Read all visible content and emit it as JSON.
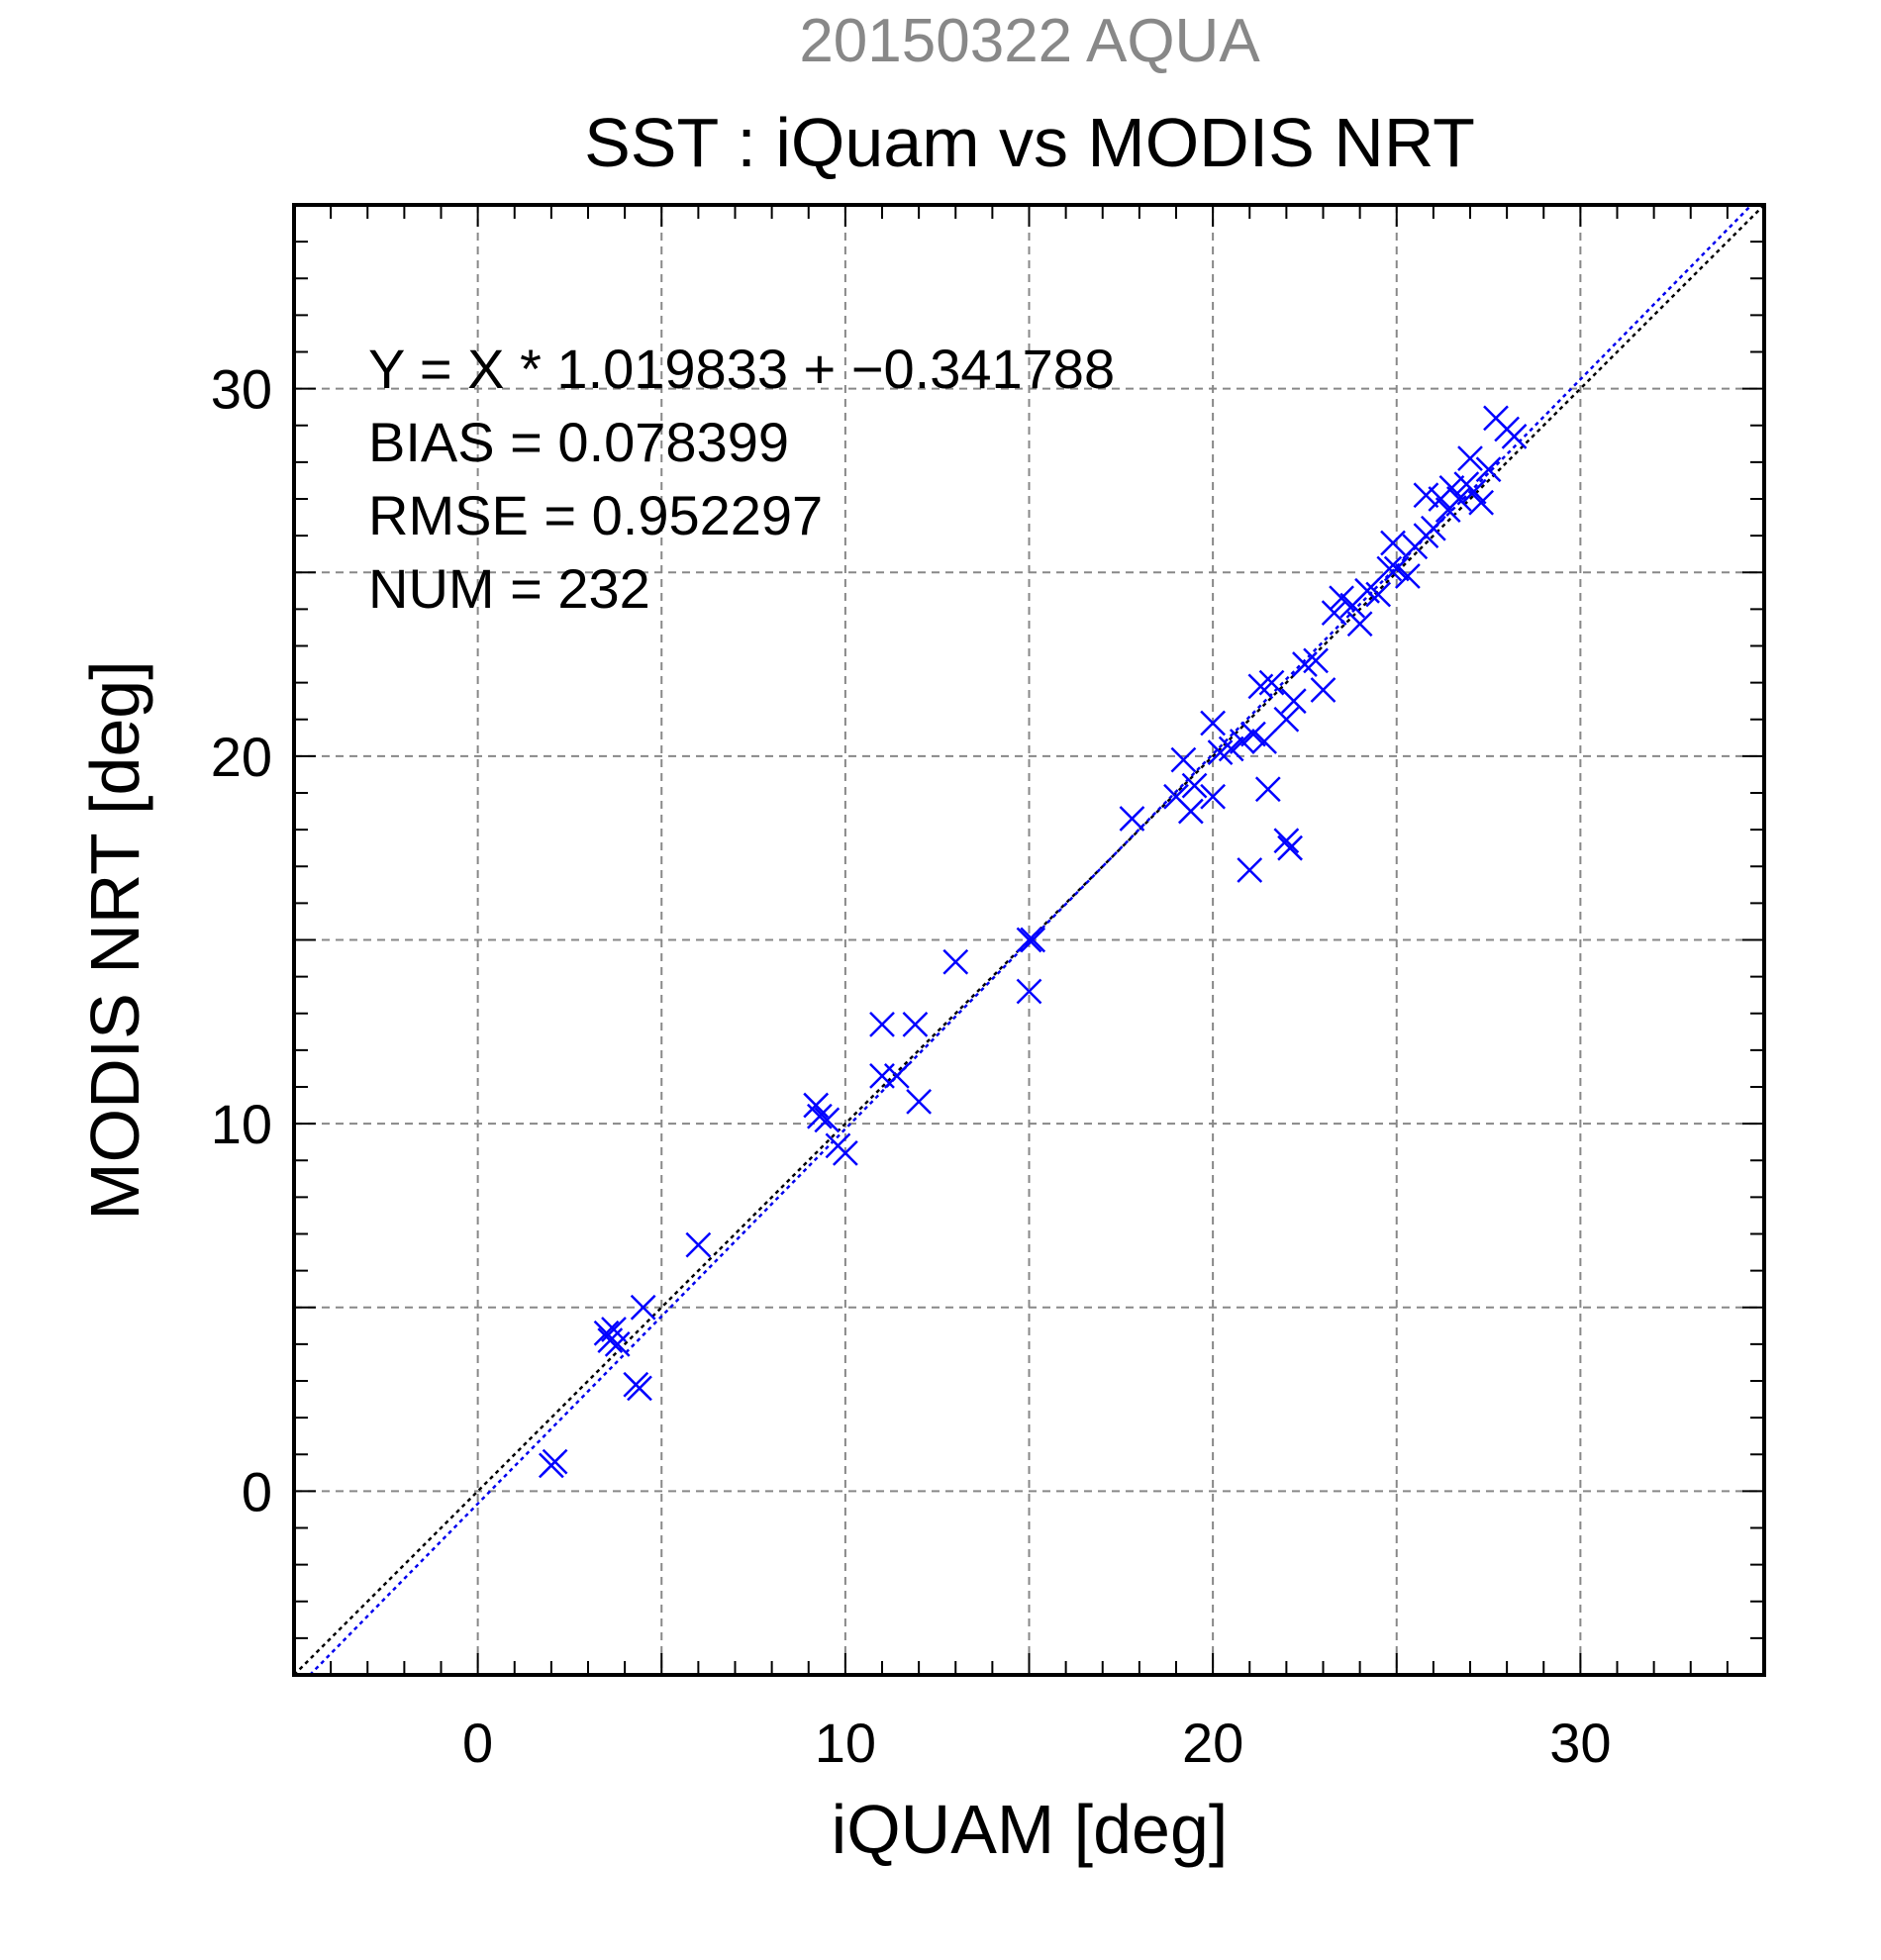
{
  "chart_data": {
    "type": "scatter",
    "title": "20150322 AQUA",
    "subtitle": "SST : iQuam vs MODIS NRT",
    "xlabel": "iQUAM [deg]",
    "ylabel": "MODIS NRT [deg]",
    "xlim": [
      -5,
      35
    ],
    "ylim": [
      -5,
      35
    ],
    "xticks": [
      0,
      10,
      20,
      30
    ],
    "yticks": [
      0,
      10,
      20,
      30
    ],
    "xtick_labels": [
      "0",
      "10",
      "20",
      "30"
    ],
    "ytick_labels": [
      "0",
      "10",
      "20",
      "30"
    ],
    "grid": true,
    "stats": [
      "Y = X * 1.019833 + −0.341788",
      "BIAS = 0.078399",
      "RMSE = 0.952297",
      "NUM = 232"
    ],
    "fit_line": {
      "slope": 1.019833,
      "intercept": -0.341788
    },
    "series": [
      {
        "marker": "x",
        "points": [
          [
            2.0,
            0.7
          ],
          [
            2.1,
            0.8
          ],
          [
            3.5,
            4.3
          ],
          [
            3.6,
            4.1
          ],
          [
            3.8,
            4.0
          ],
          [
            3.7,
            4.4
          ],
          [
            4.3,
            2.9
          ],
          [
            4.4,
            2.8
          ],
          [
            4.5,
            5.0
          ],
          [
            6.0,
            6.7
          ],
          [
            9.2,
            10.5
          ],
          [
            9.3,
            10.2
          ],
          [
            9.5,
            10.1
          ],
          [
            9.8,
            9.4
          ],
          [
            10.0,
            9.2
          ],
          [
            11.0,
            12.7
          ],
          [
            11.0,
            11.3
          ],
          [
            11.4,
            11.3
          ],
          [
            11.9,
            12.7
          ],
          [
            12.0,
            10.6
          ],
          [
            13.0,
            14.4
          ],
          [
            15.0,
            15.0
          ],
          [
            15.1,
            15.0
          ],
          [
            15.0,
            13.6
          ],
          [
            17.8,
            18.3
          ],
          [
            19.0,
            18.9
          ],
          [
            19.2,
            19.9
          ],
          [
            19.4,
            18.5
          ],
          [
            19.5,
            19.2
          ],
          [
            20.0,
            18.9
          ],
          [
            20.0,
            20.9
          ],
          [
            20.2,
            20.1
          ],
          [
            20.5,
            20.2
          ],
          [
            20.8,
            20.4
          ],
          [
            21.0,
            16.9
          ],
          [
            21.1,
            20.6
          ],
          [
            21.3,
            21.9
          ],
          [
            21.4,
            20.4
          ],
          [
            21.5,
            19.1
          ],
          [
            21.6,
            22.0
          ],
          [
            22.0,
            17.7
          ],
          [
            22.1,
            17.5
          ],
          [
            22.0,
            21.0
          ],
          [
            22.2,
            21.5
          ],
          [
            22.5,
            22.5
          ],
          [
            22.8,
            22.6
          ],
          [
            23.0,
            21.8
          ],
          [
            23.3,
            23.9
          ],
          [
            23.5,
            24.3
          ],
          [
            23.8,
            24.1
          ],
          [
            24.0,
            23.6
          ],
          [
            24.2,
            24.5
          ],
          [
            24.5,
            24.4
          ],
          [
            24.8,
            25.1
          ],
          [
            24.9,
            25.8
          ],
          [
            25.0,
            25.1
          ],
          [
            25.3,
            24.9
          ],
          [
            25.5,
            25.7
          ],
          [
            25.8,
            26.0
          ],
          [
            25.8,
            27.1
          ],
          [
            26.0,
            26.2
          ],
          [
            26.2,
            27.0
          ],
          [
            26.4,
            26.7
          ],
          [
            26.5,
            27.3
          ],
          [
            26.7,
            27.0
          ],
          [
            26.9,
            27.4
          ],
          [
            27.0,
            28.1
          ],
          [
            27.1,
            27.2
          ],
          [
            27.3,
            26.9
          ],
          [
            27.5,
            27.8
          ],
          [
            27.7,
            29.2
          ],
          [
            28.0,
            28.9
          ],
          [
            28.2,
            28.7
          ]
        ]
      }
    ]
  }
}
